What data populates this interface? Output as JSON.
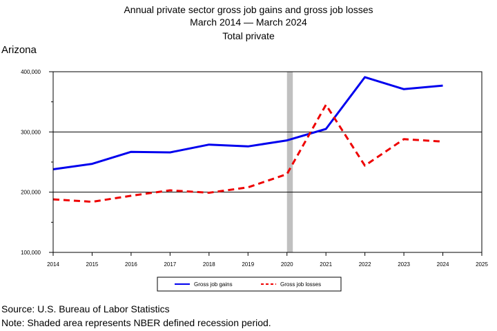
{
  "chart_data": {
    "type": "line",
    "title": "Annual private sector gross job gains and gross job losses",
    "subtitle": "March 2014 — March 2024",
    "subtitle2": "Total private",
    "region_label": "Arizona",
    "x": [
      2014,
      2015,
      2016,
      2017,
      2018,
      2019,
      2020,
      2021,
      2022,
      2023,
      2024
    ],
    "x_ticks": [
      "2014",
      "2015",
      "2016",
      "2017",
      "2018",
      "2019",
      "2020",
      "2021",
      "2022",
      "2023",
      "2024",
      "2025"
    ],
    "xlim": [
      2014,
      2025
    ],
    "ylim": [
      100000,
      400000
    ],
    "y_ticks": [
      "100,000",
      "200,000",
      "300,000",
      "400,000"
    ],
    "y_tick_values": [
      100000,
      200000,
      300000,
      400000
    ],
    "grid": "horizontal at 200,000 and 300,000",
    "recession_shading": [
      2020,
      2020.15
    ],
    "series": [
      {
        "name": "Gross job gains",
        "color": "#0000ee",
        "style": "solid",
        "values": [
          238000,
          247000,
          267000,
          266000,
          279000,
          276000,
          286000,
          305000,
          391000,
          371000,
          377000
        ]
      },
      {
        "name": "Gross job losses",
        "color": "#ee0000",
        "style": "dashed",
        "values": [
          188000,
          184000,
          194000,
          203000,
          199000,
          208000,
          230000,
          345000,
          244000,
          288000,
          284000
        ]
      }
    ],
    "legend_position": "bottom"
  },
  "footer": {
    "source": "Source: U.S. Bureau of Labor Statistics",
    "note": "Note: Shaded area represents NBER defined recession period."
  }
}
